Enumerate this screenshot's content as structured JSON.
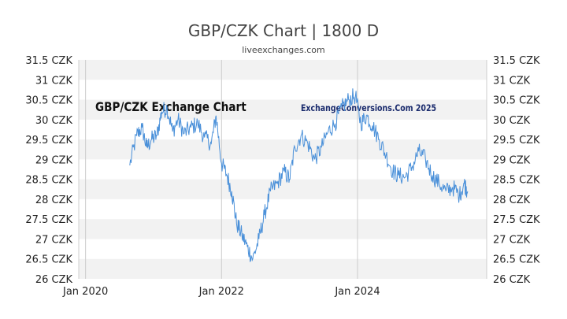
{
  "chart_data": {
    "type": "line",
    "title": "GBP/CZK Chart | 1800 D",
    "subtitle": "liveexchanges.com",
    "watermark_left": "GBP/CZK Exchange Chart",
    "watermark_right": "ExchangeConversions.Com 2025",
    "ylim": [
      26,
      31.5
    ],
    "y_ticks": [
      "26 CZK",
      "26.5 CZK",
      "27 CZK",
      "27.5 CZK",
      "28 CZK",
      "28.5 CZK",
      "29 CZK",
      "29.5 CZK",
      "30 CZK",
      "30.5 CZK",
      "31 CZK",
      "31.5 CZK"
    ],
    "x_ticks": [
      "Jan 2020",
      "Jan 2022",
      "Jan 2024"
    ],
    "x_tick_years": [
      2020,
      2022,
      2024
    ],
    "xlim": [
      2019.9,
      2025.9
    ],
    "grid": "alternating horizontal bands, vertical lines at ticks",
    "series": [
      {
        "name": "GBP/CZK",
        "color": "#4a90d9",
        "x": [
          2020.65,
          2020.75,
          2020.83,
          2020.9,
          2020.97,
          2021.05,
          2021.12,
          2021.2,
          2021.28,
          2021.36,
          2021.45,
          2021.55,
          2021.65,
          2021.75,
          2021.85,
          2021.92,
          2022.0,
          2022.08,
          2022.15,
          2022.22,
          2022.3,
          2022.38,
          2022.46,
          2022.55,
          2022.63,
          2022.72,
          2022.82,
          2022.92,
          2023.0,
          2023.08,
          2023.17,
          2023.27,
          2023.37,
          2023.47,
          2023.57,
          2023.67,
          2023.77,
          2023.87,
          2023.97,
          2024.05,
          2024.13,
          2024.22,
          2024.32,
          2024.42,
          2024.52,
          2024.6,
          2024.7,
          2024.8,
          2024.9,
          2025.0,
          2025.1,
          2025.2,
          2025.3,
          2025.4,
          2025.5,
          2025.57,
          2025.62
        ],
        "values": [
          28.85,
          29.6,
          29.8,
          29.3,
          29.5,
          29.6,
          30.2,
          30.3,
          29.7,
          30.0,
          29.65,
          29.8,
          29.9,
          29.55,
          29.4,
          30.1,
          28.9,
          28.6,
          28.2,
          27.4,
          27.1,
          26.8,
          26.5,
          27.0,
          27.6,
          28.2,
          28.4,
          28.7,
          28.5,
          29.3,
          29.6,
          29.4,
          29.0,
          29.3,
          29.7,
          29.9,
          30.3,
          30.5,
          30.6,
          29.9,
          30.1,
          29.85,
          29.5,
          29.1,
          28.7,
          28.6,
          28.55,
          28.8,
          29.2,
          29.0,
          28.6,
          28.4,
          28.2,
          28.3,
          28.1,
          28.4,
          28.2
        ]
      }
    ]
  }
}
